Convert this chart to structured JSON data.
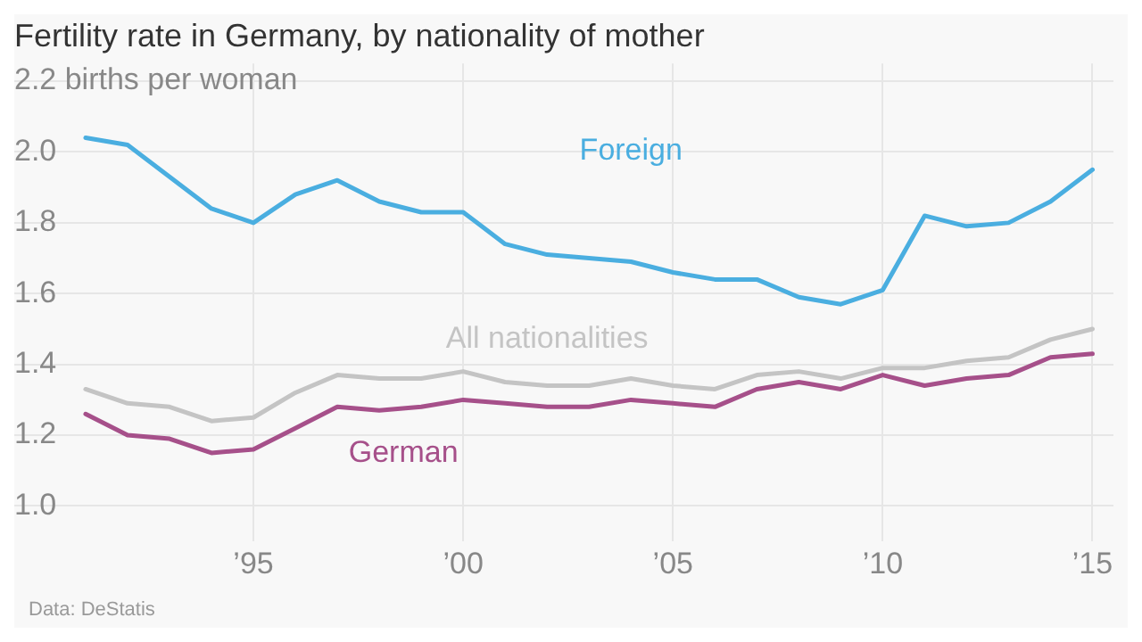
{
  "chart_data": {
    "type": "line",
    "title": "Fertility rate in Germany, by nationality of mother",
    "x": [
      1991,
      1992,
      1993,
      1994,
      1995,
      1996,
      1997,
      1998,
      1999,
      2000,
      2001,
      2002,
      2003,
      2004,
      2005,
      2006,
      2007,
      2008,
      2009,
      2010,
      2011,
      2012,
      2013,
      2014,
      2015
    ],
    "series": [
      {
        "name": "Foreign",
        "color": "#4aaee0",
        "values": [
          2.04,
          2.02,
          1.93,
          1.84,
          1.8,
          1.88,
          1.92,
          1.86,
          1.83,
          1.83,
          1.74,
          1.71,
          1.7,
          1.69,
          1.66,
          1.64,
          1.64,
          1.59,
          1.57,
          1.61,
          1.82,
          1.79,
          1.8,
          1.86,
          1.95
        ]
      },
      {
        "name": "All nationalities",
        "color": "#c4c4c4",
        "values": [
          1.33,
          1.29,
          1.28,
          1.24,
          1.25,
          1.32,
          1.37,
          1.36,
          1.36,
          1.38,
          1.35,
          1.34,
          1.34,
          1.36,
          1.34,
          1.33,
          1.37,
          1.38,
          1.36,
          1.39,
          1.39,
          1.41,
          1.42,
          1.47,
          1.5
        ]
      },
      {
        "name": "German",
        "color": "#a6508a",
        "values": [
          1.26,
          1.2,
          1.19,
          1.15,
          1.16,
          1.22,
          1.28,
          1.27,
          1.28,
          1.3,
          1.29,
          1.28,
          1.28,
          1.3,
          1.29,
          1.28,
          1.33,
          1.35,
          1.33,
          1.37,
          1.34,
          1.36,
          1.37,
          1.42,
          1.43
        ]
      }
    ],
    "xlim": [
      1989.3,
      2015.5
    ],
    "xticks": [
      {
        "value": 1995,
        "label": "’95"
      },
      {
        "value": 2000,
        "label": "’00"
      },
      {
        "value": 2005,
        "label": "’05"
      },
      {
        "value": 2010,
        "label": "’10"
      },
      {
        "value": 2015,
        "label": "’15"
      }
    ],
    "ylim": [
      0.9,
      2.25
    ],
    "yticks": [
      {
        "value": 1.0,
        "label": "1.0"
      },
      1.2,
      1.4,
      1.6,
      1.8,
      {
        "value": 2.0,
        "label": "2.0"
      },
      {
        "value": 2.2,
        "label": "2.2 births per woman"
      }
    ],
    "grid": true,
    "legend": false,
    "marker": "none",
    "line_style": "solid",
    "annotations": [
      "Data: DeStatis"
    ]
  }
}
